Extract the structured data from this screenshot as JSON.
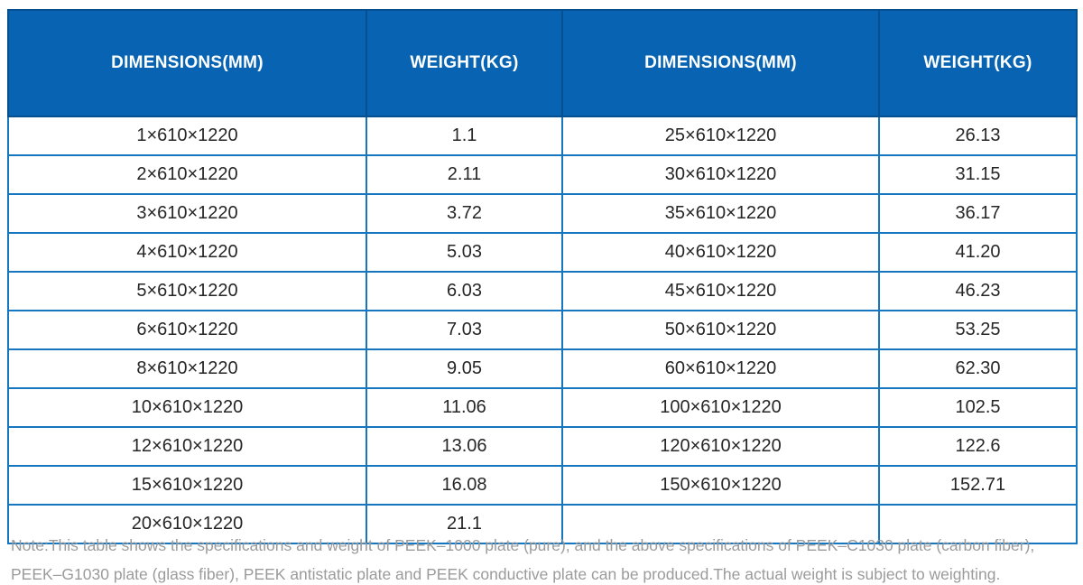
{
  "chart_data": {
    "type": "table",
    "columns": [
      "DIMENSIONS(MM)",
      "WEIGHT(KG)",
      "DIMENSIONS(MM)",
      "WEIGHT(KG)"
    ],
    "rows": [
      [
        "1×610×1220",
        "1.1",
        "25×610×1220",
        "26.13"
      ],
      [
        "2×610×1220",
        "2.11",
        "30×610×1220",
        "31.15"
      ],
      [
        "3×610×1220",
        "3.72",
        "35×610×1220",
        "36.17"
      ],
      [
        "4×610×1220",
        "5.03",
        "40×610×1220",
        "41.20"
      ],
      [
        "5×610×1220",
        "6.03",
        "45×610×1220",
        "46.23"
      ],
      [
        "6×610×1220",
        "7.03",
        "50×610×1220",
        "53.25"
      ],
      [
        "8×610×1220",
        "9.05",
        "60×610×1220",
        "62.30"
      ],
      [
        "10×610×1220",
        "11.06",
        "100×610×1220",
        "102.5"
      ],
      [
        "12×610×1220",
        "13.06",
        "120×610×1220",
        "122.6"
      ],
      [
        "15×610×1220",
        "16.08",
        "150×610×1220",
        "152.71"
      ],
      [
        "20×610×1220",
        "21.1",
        "",
        ""
      ]
    ]
  },
  "note": {
    "line1": "Note:This table shows the specifications and weight of PEEK–1000 plate (pure), and the above specifications of PEEK–C1030 plate (carbon fiber),",
    "line2": "PEEK–G1030 plate (glass fiber), PEEK antistatic plate and PEEK conductive plate can be produced.The actual weight is subject to weighting."
  },
  "colors": {
    "header_background": "#0864b2",
    "header_border": "#07508f",
    "header_text": "#ffffff",
    "grid_line": "#1677c0",
    "body_text": "#262626",
    "note_text": "#9b9b9b"
  }
}
